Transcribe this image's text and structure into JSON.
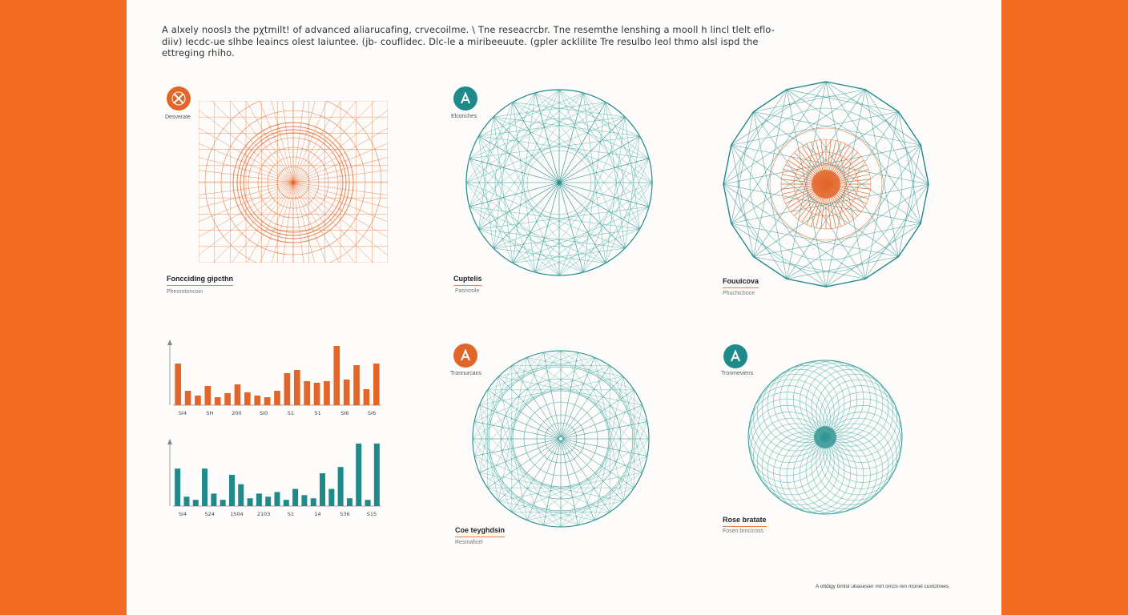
{
  "intro": "A alxely nooslз the pχtmilt! of advanced aliarucafing, crvecoilme. \\ Tne reseacrcbr. Tne resemthe lenshing a mooll h lincl tlelt eflo-diiv) Iecdc-ue slhbe leaincs olest Iaiuntee. (jb- couflidec. Dlc-le a miribeeuute. (gpler acklilite Tre resulbo leol thmo alsl ispd the ettreging rhiho.",
  "footer": "A ottdigy bmtst ubasesier mirt orrcis ren monel cuxlcitrees.",
  "panels": [
    {
      "badge_color": "#e2662a",
      "badge_icon": "cross-icon",
      "label": "Desverate",
      "caption": "Foncciding gipcthn",
      "sub": "Pheorotoncoin"
    },
    {
      "badge_color": "#1f8a8a",
      "badge_icon": "letter-a-icon",
      "label": "Elconches",
      "caption": "Cuptelis",
      "sub": "Pasnosile"
    },
    {
      "badge_color": "",
      "badge_icon": "",
      "label": "",
      "caption": "Fouuicova",
      "sub": "Phuchicboce"
    },
    {
      "badge_color": "#e2662a",
      "badge_icon": "letter-a-icon",
      "label": "Tronnurcans",
      "caption": "Coe teyghdsin",
      "sub": "Resmaficel"
    },
    {
      "badge_color": "#1f8a8a",
      "badge_icon": "letter-a-icon",
      "label": "Tronmeviens",
      "caption": "Rose bratate",
      "sub": "Fosen brncicoss"
    }
  ],
  "colors": {
    "orange": "#e2662a",
    "teal": "#1f8a8a",
    "teal_light": "#5bb7b1",
    "background": "#f26d21",
    "sheet": "#fdfcfa"
  },
  "chart_data": [
    {
      "type": "bar",
      "color": "#e2662a",
      "x_tick_labels": [
        "SI4",
        "SH",
        "200",
        "SI0",
        "S1",
        "S1",
        "SI6",
        "SI6"
      ],
      "values": [
        52,
        18,
        12,
        24,
        10,
        15,
        26,
        16,
        12,
        10,
        18,
        40,
        44,
        30,
        28,
        30,
        74,
        32,
        50,
        20,
        52
      ],
      "ylim": [
        0,
        80
      ]
    },
    {
      "type": "bar",
      "color": "#1f8a8a",
      "x_tick_labels": [
        "SI4",
        "S24",
        "1S04",
        "2103",
        "S1",
        "14",
        "S36",
        "S15"
      ],
      "values": [
        48,
        12,
        8,
        48,
        16,
        8,
        40,
        28,
        10,
        16,
        12,
        18,
        8,
        22,
        14,
        10,
        42,
        22,
        50,
        10,
        80,
        8,
        80
      ],
      "ylim": [
        0,
        84
      ]
    }
  ]
}
